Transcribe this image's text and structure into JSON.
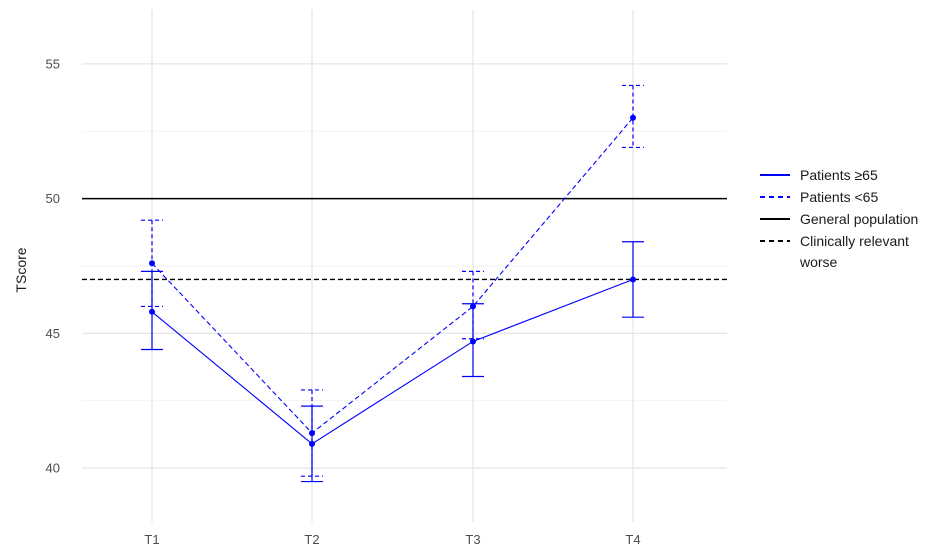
{
  "chart_data": {
    "type": "line",
    "categories": [
      "T1",
      "T2",
      "T3",
      "T4"
    ],
    "ylabel": "TScore",
    "ylim": [
      38,
      57
    ],
    "yticks": [
      40,
      45,
      50,
      55
    ],
    "grid": true,
    "legend_position": "right",
    "series": [
      {
        "name": "Patients ≥65",
        "line_style": "solid",
        "color": "#0000ff",
        "values": [
          45.8,
          40.9,
          44.7,
          47.0
        ],
        "error_low": [
          44.4,
          39.5,
          43.4,
          45.6
        ],
        "error_high": [
          47.3,
          42.3,
          46.1,
          48.4
        ]
      },
      {
        "name": "Patients <65",
        "line_style": "dashed",
        "color": "#0000ff",
        "values": [
          47.6,
          41.3,
          46.0,
          53.0
        ],
        "error_low": [
          46.0,
          39.7,
          44.8,
          51.9
        ],
        "error_high": [
          49.2,
          42.9,
          47.3,
          54.2
        ]
      }
    ],
    "reference_lines": [
      {
        "name": "General population",
        "y": 50,
        "line_style": "solid",
        "color": "#000000"
      },
      {
        "name": "Clinically relevant worse",
        "y": 47,
        "line_style": "dashed",
        "color": "#000000"
      }
    ],
    "legend": [
      {
        "lines": [
          "Patients ≥65"
        ],
        "line_style": "solid",
        "color": "#0000ff"
      },
      {
        "lines": [
          "Patients <65"
        ],
        "line_style": "dashed",
        "color": "#0000ff"
      },
      {
        "lines": [
          "General population"
        ],
        "line_style": "solid",
        "color": "#000000"
      },
      {
        "lines": [
          "Clinically relevant",
          "worse"
        ],
        "line_style": "dashed",
        "color": "#000000"
      }
    ]
  }
}
